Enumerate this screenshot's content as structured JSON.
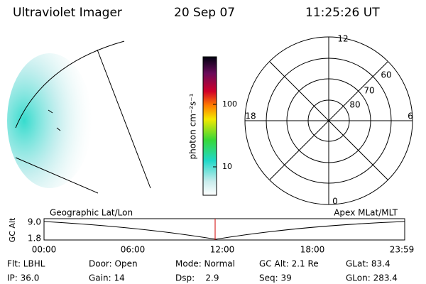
{
  "header": {
    "title": "Ultraviolet Imager",
    "date": "20 Sep 07",
    "time": "11:25:26 UT"
  },
  "colorbar": {
    "label": "photon cm⁻²s⁻¹",
    "ticks": [
      "100",
      "10"
    ]
  },
  "polar": {
    "mlt_labels": [
      "12",
      "18",
      "6",
      "0"
    ],
    "lat_labels": [
      "60",
      "70",
      "80"
    ]
  },
  "altitude_plot": {
    "left_label": "Geographic Lat/Lon",
    "right_label": "Apex MLat/MLT",
    "y_label": "GC Alt",
    "y_ticks": [
      "9.0",
      "1.8"
    ],
    "x_ticks": [
      "00:00",
      "06:00",
      "12:00",
      "18:00",
      "23:59"
    ]
  },
  "footer": {
    "rows": [
      [
        "Flt: LBHL",
        "Door: Open",
        "Mode: Normal",
        "GC Alt: 2.1 Re",
        "GLat: 83.4"
      ],
      [
        "IP: 36.0",
        "Gain: 14",
        "Dsp:    2.9",
        "Seq: 39",
        "GLon: 283.4"
      ]
    ]
  }
}
